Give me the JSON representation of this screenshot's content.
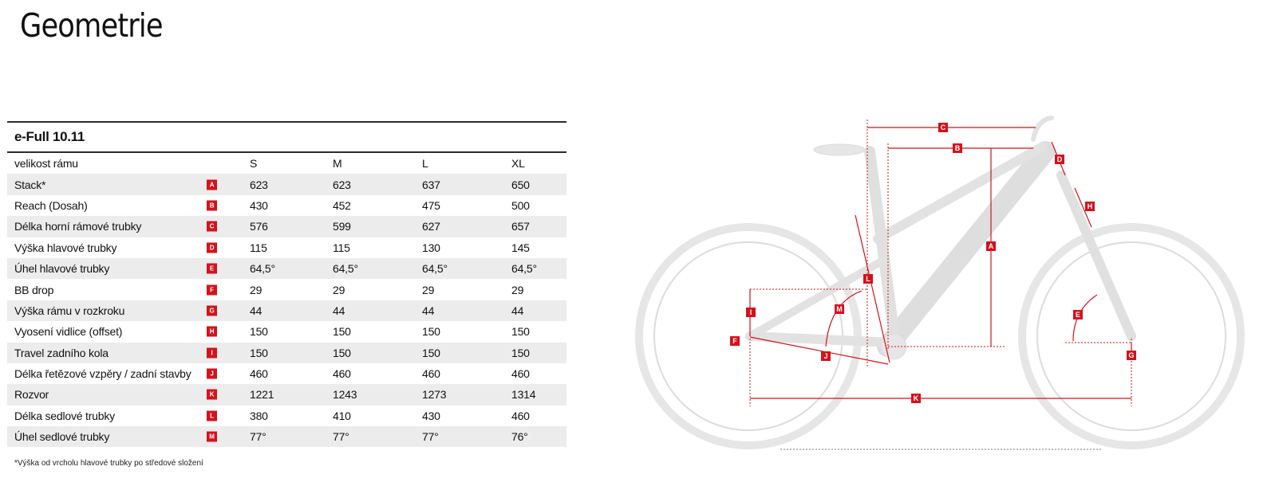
{
  "title": "Geometrie",
  "table": {
    "model": "e-Full 10.11",
    "size_label": "velikost rámu",
    "sizes": [
      "S",
      "M",
      "L",
      "XL"
    ],
    "rows": [
      {
        "label": "Stack*",
        "badge": "A",
        "values": [
          "623",
          "623",
          "637",
          "650"
        ]
      },
      {
        "label": "Reach (Dosah)",
        "badge": "B",
        "values": [
          "430",
          "452",
          "475",
          "500"
        ]
      },
      {
        "label": "Délka horní rámové trubky",
        "badge": "C",
        "values": [
          "576",
          "599",
          "627",
          "657"
        ]
      },
      {
        "label": "Výška hlavové trubky",
        "badge": "D",
        "values": [
          "115",
          "115",
          "130",
          "145"
        ]
      },
      {
        "label": "Úhel hlavové trubky",
        "badge": "E",
        "values": [
          "64,5°",
          "64,5°",
          "64,5°",
          "64,5°"
        ]
      },
      {
        "label": "BB drop",
        "badge": "F",
        "values": [
          "29",
          "29",
          "29",
          "29"
        ]
      },
      {
        "label": "Výška rámu v rozkroku",
        "badge": "G",
        "values": [
          "44",
          "44",
          "44",
          "44"
        ]
      },
      {
        "label": "Vyosení vidlice (offset)",
        "badge": "H",
        "values": [
          "150",
          "150",
          "150",
          "150"
        ]
      },
      {
        "label": "Travel zadního kola",
        "badge": "I",
        "values": [
          "150",
          "150",
          "150",
          "150"
        ]
      },
      {
        "label": "Délka řetězové vzpěry / zadní stavby",
        "badge": "J",
        "values": [
          "460",
          "460",
          "460",
          "460"
        ]
      },
      {
        "label": "Rozvor",
        "badge": "K",
        "values": [
          "1221",
          "1243",
          "1273",
          "1314"
        ]
      },
      {
        "label": "Délka sedlové trubky",
        "badge": "L",
        "values": [
          "380",
          "410",
          "430",
          "460"
        ]
      },
      {
        "label": "Úhel sedlové trubky",
        "badge": "M",
        "values": [
          "77°",
          "77°",
          "77°",
          "76°"
        ]
      }
    ]
  },
  "footnote": "*Výška od vrcholu hlavové trubky po středové složení",
  "diagram": {
    "markers": [
      "A",
      "B",
      "C",
      "D",
      "E",
      "F",
      "G",
      "H",
      "I",
      "J",
      "K",
      "L",
      "M"
    ]
  },
  "colors": {
    "accent": "#d4121c",
    "row_shade": "#ececec",
    "bike_gray": "#dcdcdc"
  }
}
